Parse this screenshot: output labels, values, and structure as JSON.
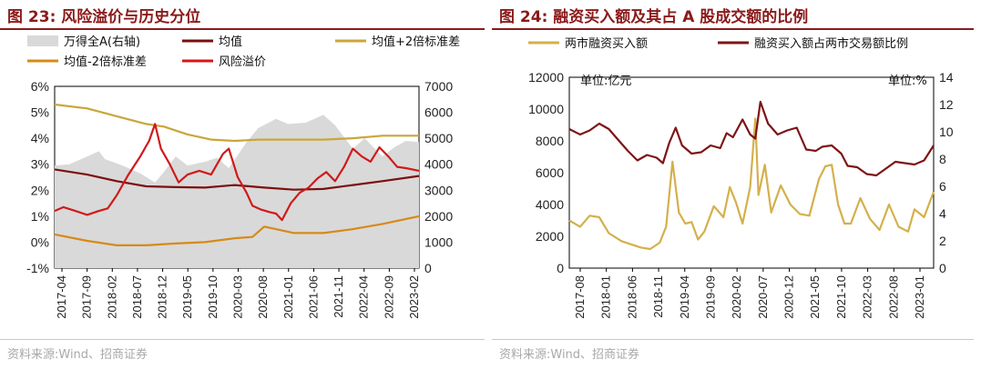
{
  "left": {
    "title": "图 23:  风险溢价与历史分位",
    "source": "资料来源:Wind、招商证券",
    "chart_data": {
      "type": "line",
      "legend": [
        "万得全A(右轴)",
        "均值",
        "均值+2倍标准差",
        "均值-2倍标准差",
        "风险溢价"
      ],
      "y_left": {
        "ticks": [
          "6%",
          "5%",
          "4%",
          "3%",
          "2%",
          "1%",
          "0%",
          "-1%"
        ],
        "range": [
          -1,
          6
        ]
      },
      "y_right": {
        "ticks": [
          "7000",
          "6000",
          "5000",
          "4000",
          "3000",
          "2000",
          "1000",
          "0"
        ],
        "range": [
          0,
          7000
        ]
      },
      "x_ticks": [
        "2017-04",
        "2017-09",
        "2018-02",
        "2018-07",
        "2018-12",
        "2019-05",
        "2019-10",
        "2020-03",
        "2020-08",
        "2021-01",
        "2021-06",
        "2021-11",
        "2022-04",
        "2022-09",
        "2023-02"
      ],
      "x_range": [
        2017.25,
        2023.42
      ],
      "series": [
        {
          "name": "万得全A(右轴)",
          "axis": "right",
          "color": "#d9d9d9",
          "x": [
            2017.25,
            2017.5,
            2017.75,
            2018.0,
            2018.1,
            2018.4,
            2018.7,
            2018.95,
            2019.1,
            2019.3,
            2019.5,
            2019.8,
            2020.0,
            2020.2,
            2020.5,
            2020.7,
            2021.0,
            2021.2,
            2021.5,
            2021.8,
            2022.0,
            2022.3,
            2022.5,
            2022.8,
            2023.0,
            2023.2,
            2023.42
          ],
          "y": [
            3950,
            4000,
            4250,
            4500,
            4200,
            3950,
            3650,
            3300,
            3700,
            4300,
            3950,
            4100,
            4250,
            3850,
            4850,
            5400,
            5750,
            5550,
            5600,
            5900,
            5500,
            4600,
            5000,
            4300,
            4650,
            4900,
            4850
          ]
        },
        {
          "name": "均值",
          "axis": "left",
          "color": "#7b0f0f",
          "x": [
            2017.25,
            2017.8,
            2018.3,
            2018.8,
            2019.3,
            2019.8,
            2020.3,
            2020.8,
            2021.3,
            2021.8,
            2022.3,
            2022.8,
            2023.42
          ],
          "y": [
            2.8,
            2.6,
            2.35,
            2.15,
            2.12,
            2.1,
            2.2,
            2.1,
            2.02,
            2.05,
            2.2,
            2.35,
            2.55
          ]
        },
        {
          "name": "均值+2倍标准差",
          "axis": "left",
          "color": "#c9a63a",
          "x": [
            2017.25,
            2017.8,
            2018.3,
            2018.8,
            2019.1,
            2019.5,
            2019.9,
            2020.3,
            2020.7,
            2021.2,
            2021.8,
            2022.3,
            2022.8,
            2023.42
          ],
          "y": [
            5.3,
            5.15,
            4.85,
            4.55,
            4.45,
            4.15,
            3.95,
            3.9,
            3.95,
            3.95,
            3.95,
            4.0,
            4.1,
            4.1
          ]
        },
        {
          "name": "均值-2倍标准差",
          "axis": "left",
          "color": "#d68a17",
          "x": [
            2017.25,
            2017.8,
            2018.3,
            2018.8,
            2019.3,
            2019.8,
            2020.3,
            2020.6,
            2020.8,
            2021.3,
            2021.8,
            2022.3,
            2022.8,
            2023.42
          ],
          "y": [
            0.3,
            0.05,
            -0.12,
            -0.12,
            -0.05,
            0.0,
            0.15,
            0.2,
            0.6,
            0.35,
            0.35,
            0.5,
            0.7,
            1.0
          ]
        },
        {
          "name": "风险溢价",
          "axis": "left",
          "color": "#d01a1a",
          "x": [
            2017.25,
            2017.4,
            2017.6,
            2017.8,
            2018.0,
            2018.15,
            2018.3,
            2018.5,
            2018.7,
            2018.85,
            2018.95,
            2019.05,
            2019.2,
            2019.35,
            2019.5,
            2019.7,
            2019.9,
            2020.1,
            2020.2,
            2020.35,
            2020.5,
            2020.6,
            2020.75,
            2020.9,
            2021.0,
            2021.1,
            2021.25,
            2021.4,
            2021.55,
            2021.7,
            2021.85,
            2022.0,
            2022.15,
            2022.3,
            2022.45,
            2022.6,
            2022.75,
            2022.9,
            2023.05,
            2023.2,
            2023.42
          ],
          "y": [
            1.2,
            1.35,
            1.2,
            1.05,
            1.2,
            1.3,
            1.8,
            2.6,
            3.3,
            3.9,
            4.55,
            3.6,
            3.0,
            2.3,
            2.6,
            2.75,
            2.6,
            3.4,
            3.6,
            2.5,
            1.9,
            1.4,
            1.25,
            1.15,
            1.1,
            0.85,
            1.5,
            1.9,
            2.1,
            2.45,
            2.7,
            2.35,
            2.9,
            3.6,
            3.3,
            3.1,
            3.65,
            3.3,
            2.9,
            2.85,
            2.75
          ]
        }
      ]
    }
  },
  "right": {
    "title": "图 24:  融资买入额及其占 A 股成交额的比例",
    "source": "资料来源:Wind、招商证券",
    "chart_data": {
      "type": "line",
      "legend": [
        "两市融资买入额",
        "融资买入额占两市交易额比例"
      ],
      "unit_left": "单位:亿元",
      "unit_right": "单位:%",
      "y_left": {
        "ticks": [
          "12000",
          "10000",
          "8000",
          "6000",
          "4000",
          "2000",
          "0"
        ],
        "range": [
          0,
          12000
        ]
      },
      "y_right": {
        "ticks": [
          "14",
          "12",
          "10",
          "8",
          "6",
          "4",
          "2",
          "0"
        ],
        "range": [
          0,
          14
        ]
      },
      "x_ticks": [
        "2017-08",
        "2018-01",
        "2018-06",
        "2018-11",
        "2019-04",
        "2019-09",
        "2020-02",
        "2020-07",
        "2020-12",
        "2021-05",
        "2021-10",
        "2022-03",
        "2022-08",
        "2023-01"
      ],
      "x_range": [
        2017.58,
        2023.3
      ],
      "series": [
        {
          "name": "两市融资买入额",
          "axis": "left",
          "color": "#d4b04c",
          "x": [
            2017.58,
            2017.75,
            2017.9,
            2018.05,
            2018.2,
            2018.4,
            2018.55,
            2018.7,
            2018.85,
            2019.0,
            2019.1,
            2019.2,
            2019.3,
            2019.4,
            2019.5,
            2019.6,
            2019.7,
            2019.85,
            2020.0,
            2020.1,
            2020.2,
            2020.3,
            2020.42,
            2020.5,
            2020.55,
            2020.65,
            2020.75,
            2020.9,
            2021.05,
            2021.2,
            2021.35,
            2021.5,
            2021.6,
            2021.7,
            2021.8,
            2021.9,
            2022.0,
            2022.15,
            2022.3,
            2022.45,
            2022.6,
            2022.75,
            2022.9,
            2023.0,
            2023.15,
            2023.3
          ],
          "y": [
            3000,
            2600,
            3300,
            3200,
            2200,
            1700,
            1500,
            1300,
            1200,
            1600,
            2600,
            6700,
            3500,
            2800,
            2900,
            1800,
            2300,
            3900,
            3200,
            5100,
            4100,
            2800,
            5100,
            9400,
            4600,
            6500,
            3500,
            5200,
            4000,
            3400,
            3300,
            5600,
            6400,
            6500,
            4000,
            2800,
            2800,
            4400,
            3100,
            2400,
            4000,
            2600,
            2300,
            3700,
            3200,
            4800
          ]
        },
        {
          "name": "融资买入额占两市交易额比例",
          "axis": "right",
          "color": "#7d1416",
          "x": [
            2017.58,
            2017.75,
            2017.9,
            2018.05,
            2018.2,
            2018.35,
            2018.5,
            2018.65,
            2018.8,
            2018.95,
            2019.05,
            2019.15,
            2019.25,
            2019.35,
            2019.5,
            2019.65,
            2019.8,
            2019.95,
            2020.05,
            2020.15,
            2020.3,
            2020.42,
            2020.5,
            2020.58,
            2020.7,
            2020.85,
            2021.0,
            2021.15,
            2021.3,
            2021.45,
            2021.55,
            2021.7,
            2021.85,
            2021.95,
            2022.1,
            2022.25,
            2022.4,
            2022.55,
            2022.7,
            2022.85,
            2023.0,
            2023.15,
            2023.3
          ],
          "y": [
            10.2,
            9.8,
            10.1,
            10.6,
            10.2,
            9.4,
            8.6,
            7.9,
            8.3,
            8.1,
            7.7,
            9.2,
            10.3,
            9.0,
            8.4,
            8.5,
            9.0,
            8.8,
            9.9,
            9.6,
            10.9,
            9.8,
            9.5,
            12.2,
            10.6,
            9.8,
            10.1,
            10.3,
            8.7,
            8.6,
            8.9,
            9.0,
            8.4,
            7.5,
            7.4,
            6.9,
            6.8,
            7.3,
            7.8,
            7.7,
            7.6,
            7.9,
            9.0
          ]
        }
      ]
    }
  }
}
